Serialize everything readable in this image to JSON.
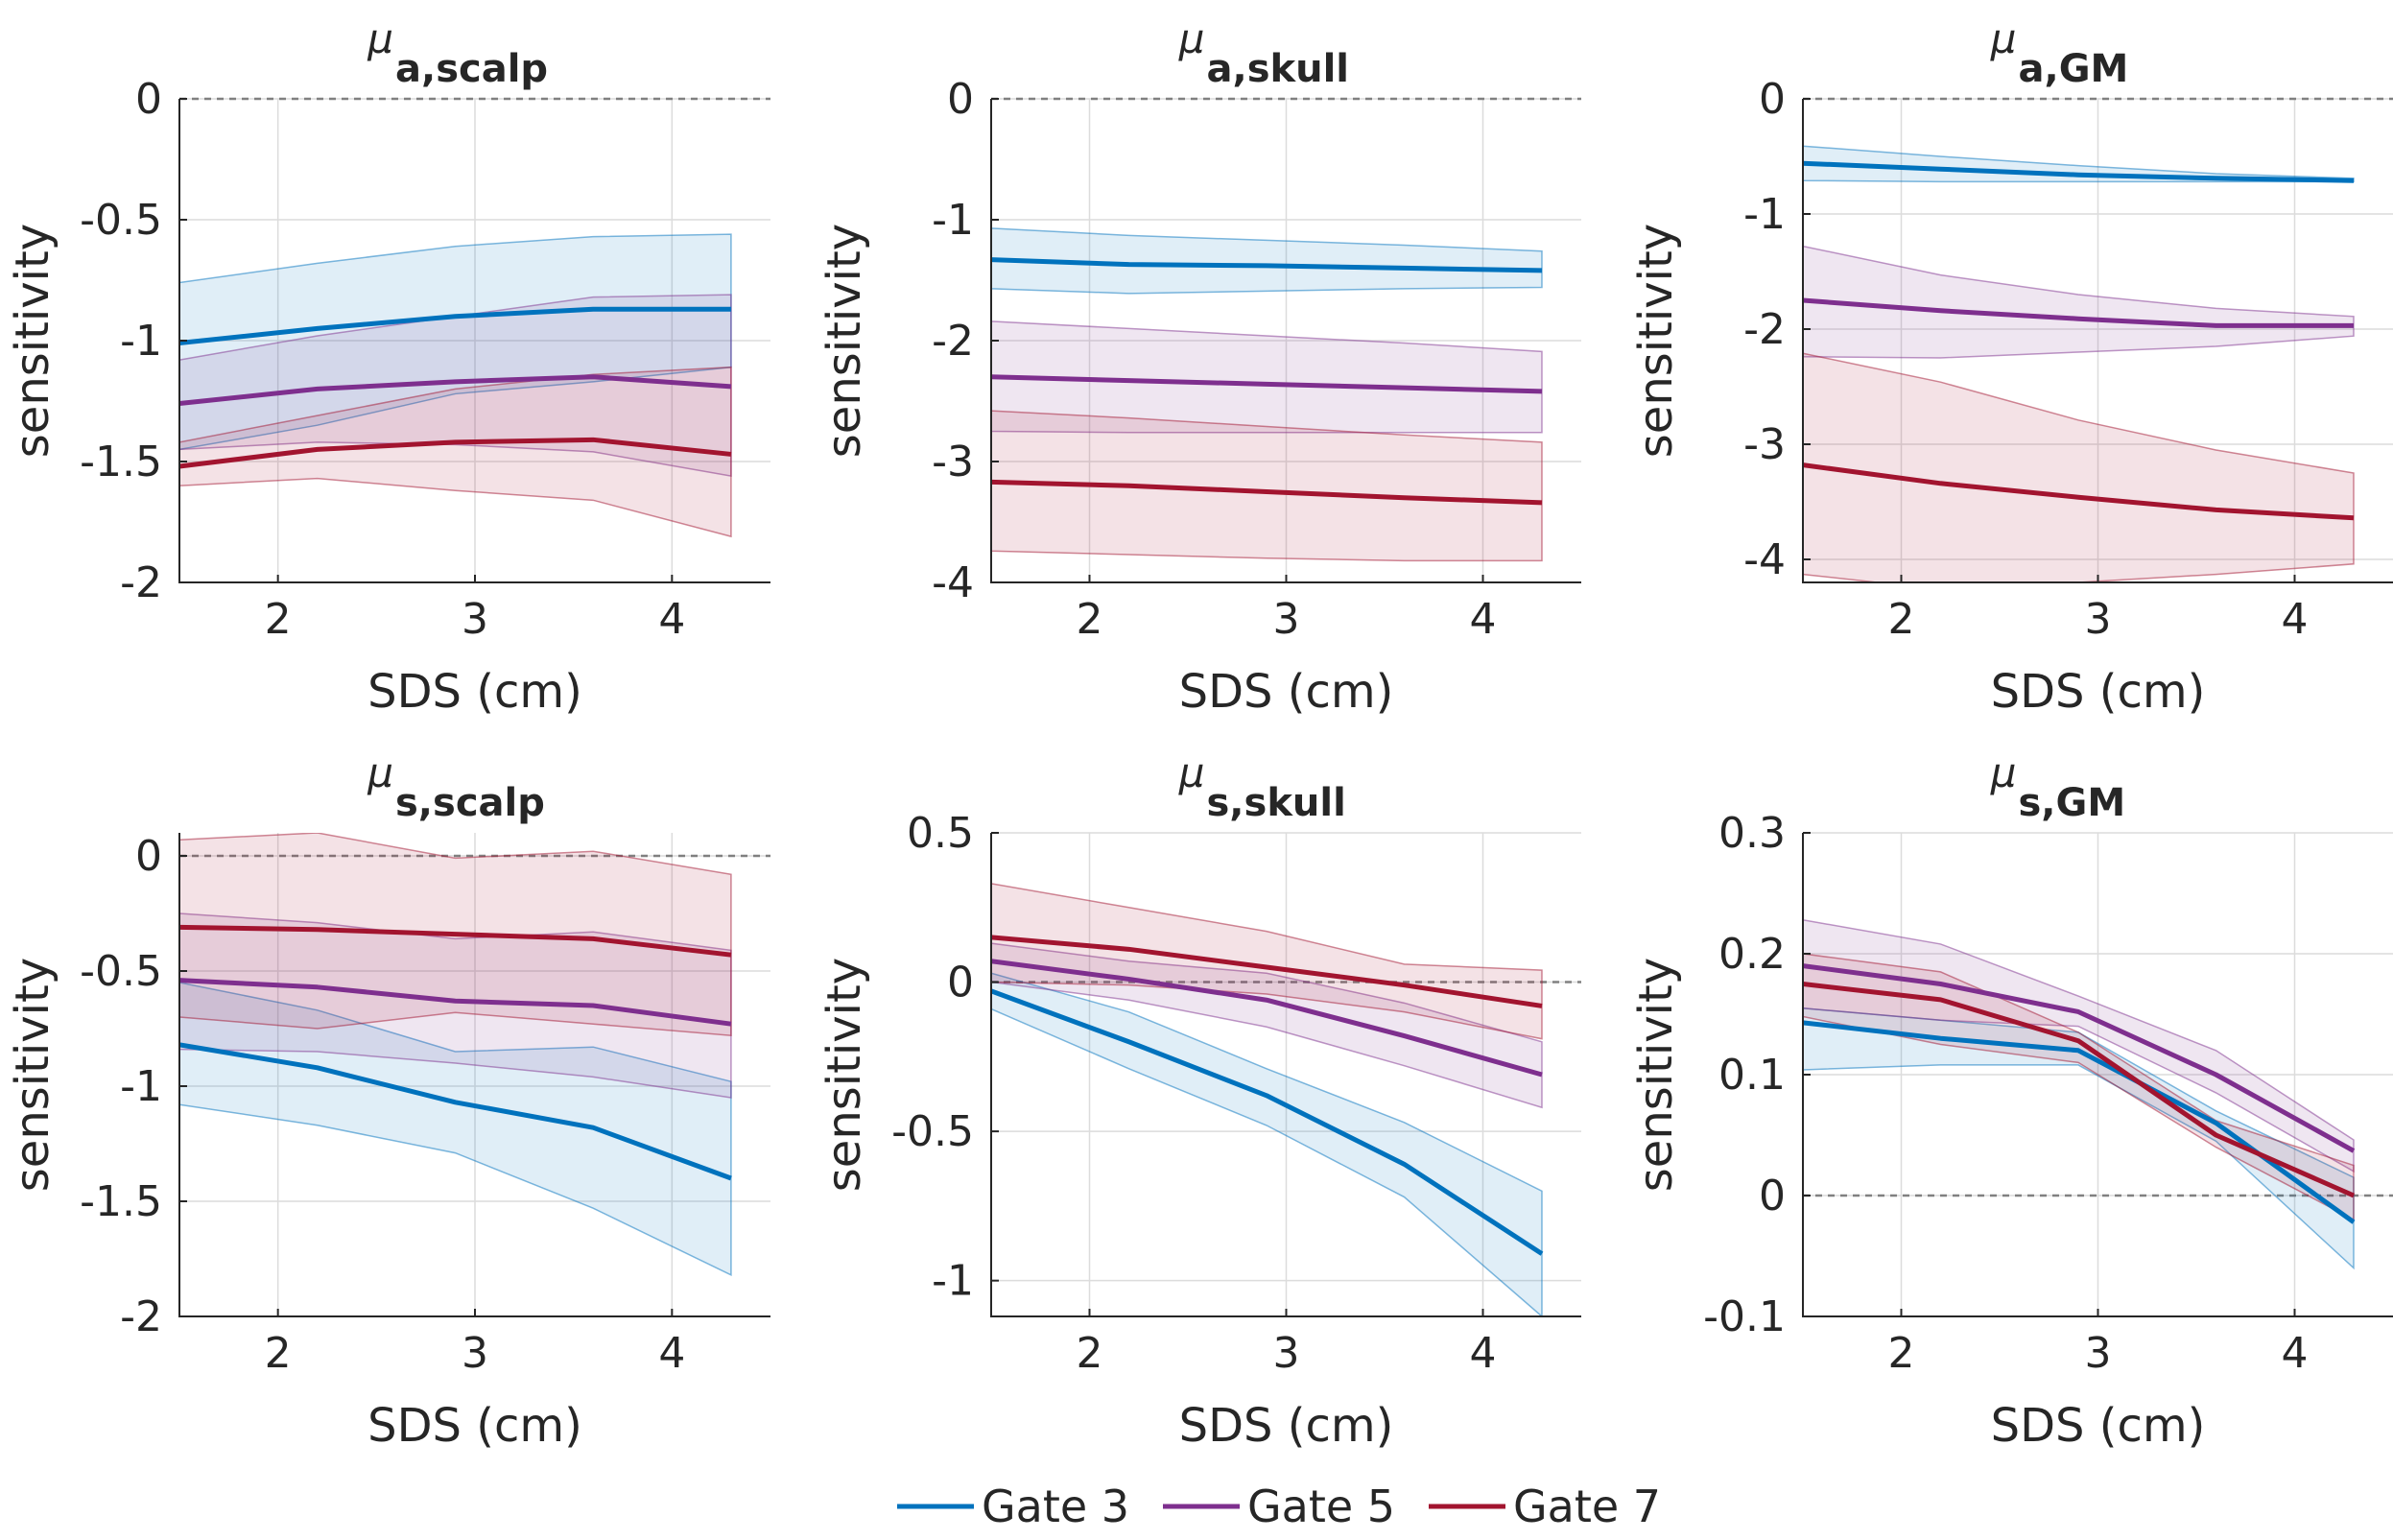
{
  "legend": {
    "entries": [
      "Gate 3",
      "Gate 5",
      "Gate 7"
    ],
    "placement": "bottom-center"
  },
  "colors": {
    "gate3": "#0072BD",
    "gate5": "#7E2F8E",
    "gate7": "#A2142F",
    "zero_line": "#808080"
  },
  "chart_data": [
    {
      "id": "mua_scalp",
      "type": "line",
      "title_main": "μ",
      "title_sub": "a,scalp",
      "xlabel": "SDS (cm)",
      "ylabel": "sensitivity",
      "xlim": [
        1.5,
        4.5
      ],
      "ylim": [
        -2,
        0
      ],
      "xticks": [
        2,
        3,
        4
      ],
      "yticks": [
        -2,
        -1.5,
        -1,
        -0.5,
        0
      ],
      "ytick_labels": [
        "-2",
        "-1.5",
        "-1",
        "-0.5",
        "0"
      ],
      "grid": true,
      "x": [
        1.5,
        2.2,
        2.9,
        3.6,
        4.3
      ],
      "series": [
        {
          "name": "Gate 3",
          "values": [
            -1.01,
            -0.95,
            -0.9,
            -0.87,
            -0.87
          ],
          "lower": [
            -1.45,
            -1.35,
            -1.22,
            -1.17,
            -1.11
          ],
          "upper": [
            -0.76,
            -0.68,
            -0.61,
            -0.57,
            -0.56
          ]
        },
        {
          "name": "Gate 5",
          "values": [
            -1.26,
            -1.2,
            -1.17,
            -1.15,
            -1.19
          ],
          "lower": [
            -1.45,
            -1.42,
            -1.43,
            -1.46,
            -1.56
          ],
          "upper": [
            -1.08,
            -0.98,
            -0.9,
            -0.82,
            -0.81
          ]
        },
        {
          "name": "Gate 7",
          "values": [
            -1.52,
            -1.45,
            -1.42,
            -1.41,
            -1.47
          ],
          "lower": [
            -1.6,
            -1.57,
            -1.62,
            -1.66,
            -1.81
          ],
          "upper": [
            -1.42,
            -1.31,
            -1.2,
            -1.14,
            -1.11
          ]
        }
      ]
    },
    {
      "id": "mua_skull",
      "type": "line",
      "title_main": "μ",
      "title_sub": "a,skull",
      "xlabel": "SDS (cm)",
      "ylabel": "sensitivity",
      "xlim": [
        1.5,
        4.5
      ],
      "ylim": [
        -4,
        0
      ],
      "xticks": [
        2,
        3,
        4
      ],
      "yticks": [
        -4,
        -3,
        -2,
        -1,
        0
      ],
      "ytick_labels": [
        "-4",
        "-3",
        "-2",
        "-1",
        "0"
      ],
      "grid": true,
      "x": [
        1.5,
        2.2,
        2.9,
        3.6,
        4.3
      ],
      "series": [
        {
          "name": "Gate 3",
          "values": [
            -1.33,
            -1.37,
            -1.38,
            -1.4,
            -1.42
          ],
          "lower": [
            -1.57,
            -1.61,
            -1.59,
            -1.57,
            -1.56
          ],
          "upper": [
            -1.07,
            -1.13,
            -1.17,
            -1.21,
            -1.26
          ]
        },
        {
          "name": "Gate 5",
          "values": [
            -2.3,
            -2.33,
            -2.36,
            -2.39,
            -2.42
          ],
          "lower": [
            -2.75,
            -2.76,
            -2.76,
            -2.76,
            -2.76
          ],
          "upper": [
            -1.84,
            -1.9,
            -1.96,
            -2.02,
            -2.09
          ]
        },
        {
          "name": "Gate 7",
          "values": [
            -3.17,
            -3.2,
            -3.25,
            -3.3,
            -3.34
          ],
          "lower": [
            -3.74,
            -3.77,
            -3.8,
            -3.82,
            -3.82
          ],
          "upper": [
            -2.58,
            -2.64,
            -2.71,
            -2.78,
            -2.84
          ]
        }
      ]
    },
    {
      "id": "mua_gm",
      "type": "line",
      "title_main": "μ",
      "title_sub": "a,GM",
      "xlabel": "SDS (cm)",
      "ylabel": "sensitivity",
      "xlim": [
        1.5,
        4.5
      ],
      "ylim": [
        -4.2,
        0
      ],
      "xticks": [
        2,
        3,
        4
      ],
      "yticks": [
        -4,
        -3,
        -2,
        -1,
        0
      ],
      "ytick_labels": [
        "-4",
        "-3",
        "-2",
        "-1",
        "0"
      ],
      "grid": true,
      "x": [
        1.5,
        2.2,
        2.9,
        3.6,
        4.3
      ],
      "series": [
        {
          "name": "Gate 3",
          "values": [
            -0.56,
            -0.61,
            -0.66,
            -0.69,
            -0.71
          ],
          "lower": [
            -0.71,
            -0.72,
            -0.72,
            -0.72,
            -0.72
          ],
          "upper": [
            -0.41,
            -0.5,
            -0.58,
            -0.65,
            -0.69
          ]
        },
        {
          "name": "Gate 5",
          "values": [
            -1.75,
            -1.84,
            -1.91,
            -1.97,
            -1.97
          ],
          "lower": [
            -2.24,
            -2.25,
            -2.2,
            -2.15,
            -2.06
          ],
          "upper": [
            -1.28,
            -1.53,
            -1.7,
            -1.82,
            -1.89
          ]
        },
        {
          "name": "Gate 7",
          "values": [
            -3.18,
            -3.34,
            -3.46,
            -3.57,
            -3.64
          ],
          "lower": [
            -4.13,
            -4.26,
            -4.2,
            -4.13,
            -4.04
          ],
          "upper": [
            -2.21,
            -2.46,
            -2.79,
            -3.05,
            -3.25
          ]
        }
      ]
    },
    {
      "id": "mus_scalp",
      "type": "line",
      "title_main": "μ",
      "title_sub": "s,scalp",
      "xlabel": "SDS (cm)",
      "ylabel": "sensitivity",
      "xlim": [
        1.5,
        4.5
      ],
      "ylim": [
        -2,
        0.1
      ],
      "xticks": [
        2,
        3,
        4
      ],
      "yticks": [
        -2,
        -1.5,
        -1,
        -0.5,
        0
      ],
      "ytick_labels": [
        "-2",
        "-1.5",
        "-1",
        "-0.5",
        "0"
      ],
      "grid": true,
      "x": [
        1.5,
        2.2,
        2.9,
        3.6,
        4.3
      ],
      "series": [
        {
          "name": "Gate 3",
          "values": [
            -0.82,
            -0.92,
            -1.07,
            -1.18,
            -1.4
          ],
          "lower": [
            -1.08,
            -1.17,
            -1.29,
            -1.53,
            -1.82
          ],
          "upper": [
            -0.55,
            -0.67,
            -0.85,
            -0.83,
            -0.98
          ]
        },
        {
          "name": "Gate 5",
          "values": [
            -0.54,
            -0.57,
            -0.63,
            -0.65,
            -0.73
          ],
          "lower": [
            -0.84,
            -0.85,
            -0.9,
            -0.96,
            -1.05
          ],
          "upper": [
            -0.25,
            -0.29,
            -0.36,
            -0.33,
            -0.41
          ]
        },
        {
          "name": "Gate 7",
          "values": [
            -0.31,
            -0.32,
            -0.34,
            -0.36,
            -0.43
          ],
          "lower": [
            -0.7,
            -0.75,
            -0.68,
            -0.73,
            -0.78
          ],
          "upper": [
            0.07,
            0.1,
            -0.01,
            0.02,
            -0.08
          ]
        }
      ]
    },
    {
      "id": "mus_skull",
      "type": "line",
      "title_main": "μ",
      "title_sub": "s,skull",
      "xlabel": "SDS (cm)",
      "ylabel": "sensitivity",
      "xlim": [
        1.5,
        4.5
      ],
      "ylim": [
        -1.12,
        0.5
      ],
      "xticks": [
        2,
        3,
        4
      ],
      "yticks": [
        -1,
        -0.5,
        0,
        0.5
      ],
      "ytick_labels": [
        "-1",
        "-0.5",
        "0",
        "0.5"
      ],
      "grid": true,
      "x": [
        1.5,
        2.2,
        2.9,
        3.6,
        4.3
      ],
      "series": [
        {
          "name": "Gate 3",
          "values": [
            -0.03,
            -0.2,
            -0.38,
            -0.61,
            -0.91
          ],
          "lower": [
            -0.09,
            -0.29,
            -0.48,
            -0.72,
            -1.12
          ],
          "upper": [
            0.03,
            -0.1,
            -0.29,
            -0.47,
            -0.7
          ]
        },
        {
          "name": "Gate 5",
          "values": [
            0.07,
            0.01,
            -0.06,
            -0.18,
            -0.31
          ],
          "lower": [
            0,
            -0.06,
            -0.15,
            -0.28,
            -0.42
          ],
          "upper": [
            0.13,
            0.07,
            0.03,
            -0.07,
            -0.2
          ]
        },
        {
          "name": "Gate 7",
          "values": [
            0.15,
            0.11,
            0.05,
            -0.01,
            -0.08
          ],
          "lower": [
            0,
            -0.01,
            -0.04,
            -0.1,
            -0.19
          ],
          "upper": [
            0.33,
            0.25,
            0.17,
            0.06,
            0.04
          ]
        }
      ]
    },
    {
      "id": "mus_gm",
      "type": "line",
      "title_main": "μ",
      "title_sub": "s,GM",
      "xlabel": "SDS (cm)",
      "ylabel": "sensitivity",
      "xlim": [
        1.5,
        4.5
      ],
      "ylim": [
        -0.1,
        0.3
      ],
      "xticks": [
        2,
        3,
        4
      ],
      "yticks": [
        -0.1,
        0,
        0.1,
        0.2,
        0.3
      ],
      "ytick_labels": [
        "-0.1",
        "0",
        "0.1",
        "0.2",
        "0.3"
      ],
      "grid": true,
      "x": [
        1.5,
        2.2,
        2.9,
        3.6,
        4.3
      ],
      "series": [
        {
          "name": "Gate 3",
          "values": [
            0.143,
            0.13,
            0.12,
            0.06,
            -0.022
          ],
          "lower": [
            0.104,
            0.108,
            0.108,
            0.045,
            -0.06
          ],
          "upper": [
            0.155,
            0.145,
            0.135,
            0.07,
            0.015
          ]
        },
        {
          "name": "Gate 5",
          "values": [
            0.19,
            0.175,
            0.152,
            0.1,
            0.037
          ],
          "lower": [
            0.155,
            0.145,
            0.14,
            0.085,
            0.02
          ],
          "upper": [
            0.228,
            0.208,
            0.165,
            0.12,
            0.046
          ]
        },
        {
          "name": "Gate 7",
          "values": [
            0.175,
            0.162,
            0.128,
            0.05,
            0
          ],
          "lower": [
            0.148,
            0.125,
            0.11,
            0.04,
            -0.02
          ],
          "upper": [
            0.2,
            0.185,
            0.135,
            0.062,
            0.025
          ]
        }
      ]
    }
  ]
}
